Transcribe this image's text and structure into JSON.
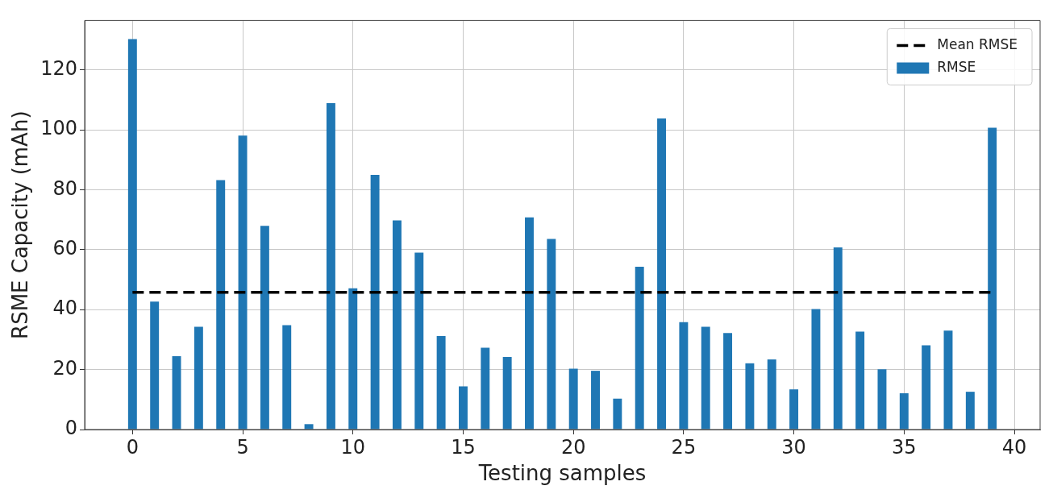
{
  "chart_data": {
    "type": "bar",
    "xlabel": "Testing samples",
    "ylabel": "RSME Capacity (mAh)",
    "x": [
      0,
      1,
      2,
      3,
      4,
      5,
      6,
      7,
      8,
      9,
      10,
      11,
      12,
      13,
      14,
      15,
      16,
      17,
      18,
      19,
      20,
      21,
      22,
      23,
      24,
      25,
      26,
      27,
      28,
      29,
      30,
      31,
      32,
      33,
      34,
      35,
      36,
      37,
      38,
      39
    ],
    "series": [
      {
        "name": "RMSE",
        "color": "#1f77b4",
        "values": [
          130.3,
          42.7,
          24.5,
          34.3,
          83.2,
          98.1,
          68,
          34.8,
          1.8,
          108.9,
          47.1,
          85,
          69.8,
          59,
          31.2,
          14.4,
          27.3,
          24.2,
          70.8,
          63.6,
          20.3,
          19.6,
          10.3,
          54.3,
          103.8,
          35.8,
          34.3,
          32.2,
          22.1,
          23.4,
          13.4,
          40.2,
          60.8,
          32.7,
          20.1,
          12.1,
          28.1,
          33,
          12.6,
          100.7
        ]
      }
    ],
    "ref_lines": [
      {
        "axis": "y",
        "value": 45.8,
        "label": "Mean RMSE",
        "color": "#000000",
        "line_style": "dashed"
      }
    ],
    "xlim": [
      -2.17,
      41.17
    ],
    "xticks": [
      0,
      5,
      10,
      15,
      20,
      25,
      30,
      35,
      40
    ],
    "ylim": [
      0,
      136.5
    ],
    "yticks": [
      0,
      20,
      40,
      60,
      80,
      100,
      120
    ],
    "grid": true,
    "legend": "top right"
  }
}
